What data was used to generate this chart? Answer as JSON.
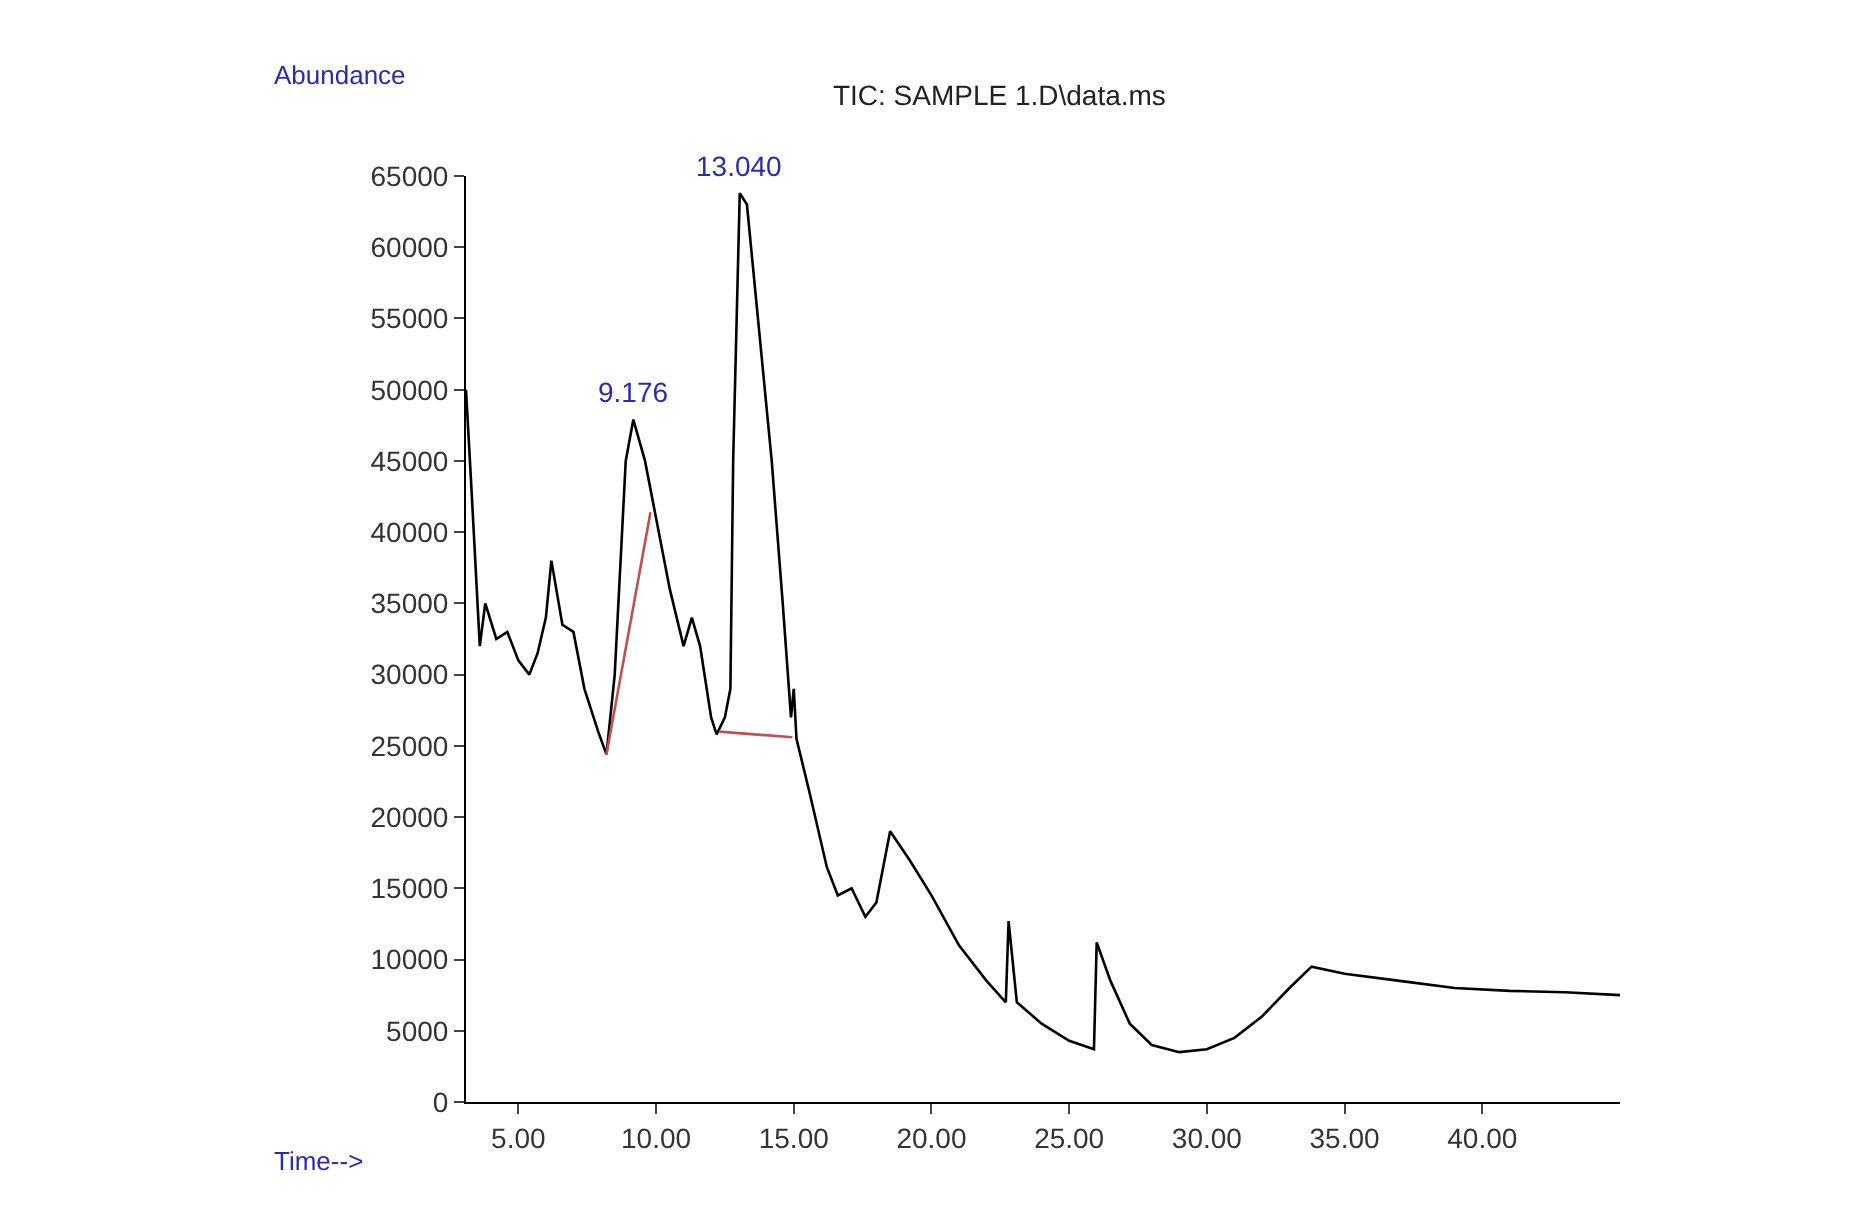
{
  "chart_data": {
    "type": "line",
    "title": "TIC: SAMPLE 1.D\\data.ms",
    "xlabel": "Time-->",
    "ylabel": "Abundance",
    "xlim": [
      3.1,
      45
    ],
    "xticks": [
      {
        "value": 5,
        "label": "5.00"
      },
      {
        "value": 10,
        "label": "10.00"
      },
      {
        "value": 15,
        "label": "15.00"
      },
      {
        "value": 20,
        "label": "20.00"
      },
      {
        "value": 25,
        "label": "25.00"
      },
      {
        "value": 30,
        "label": "30.00"
      },
      {
        "value": 35,
        "label": "35.00"
      },
      {
        "value": 40,
        "label": "40.00"
      }
    ],
    "ylim": [
      0,
      65000
    ],
    "yticks": [
      0,
      5000,
      10000,
      15000,
      20000,
      25000,
      30000,
      35000,
      40000,
      45000,
      50000,
      55000,
      60000,
      65000
    ],
    "marker": "none",
    "line_style": "solid",
    "series": [
      {
        "color": "#000000",
        "x": [
          3.1,
          3.3,
          3.6,
          3.8,
          4.2,
          4.6,
          5.0,
          5.4,
          5.7,
          6.0,
          6.2,
          6.6,
          7.0,
          7.4,
          7.9,
          8.2,
          8.5,
          8.9,
          9.176,
          9.6,
          10.0,
          10.5,
          11.0,
          11.3,
          11.6,
          12.0,
          12.2,
          12.5,
          12.7,
          12.8,
          13.04,
          13.3,
          13.7,
          14.2,
          14.6,
          14.9,
          15.0,
          15.1,
          15.6,
          16.2,
          16.6,
          17.1,
          17.6,
          18.0,
          18.5,
          19.2,
          20.0,
          21.0,
          22.0,
          22.7,
          22.8,
          23.1,
          24.0,
          25.0,
          25.9,
          26.0,
          26.5,
          27.2,
          28.0,
          29.0,
          30.0,
          31.0,
          32.0,
          33.0,
          33.8,
          35.0,
          37.0,
          39.0,
          41.0,
          43.0,
          45.0
        ],
        "values": [
          50000,
          43000,
          32000,
          35000,
          32500,
          33000,
          31000,
          30000,
          31500,
          34000,
          38000,
          33500,
          33000,
          29000,
          26000,
          24400,
          30000,
          45000,
          47900,
          45000,
          41000,
          36000,
          32000,
          34000,
          32000,
          27000,
          25800,
          27000,
          29000,
          45000,
          63800,
          63000,
          55000,
          45000,
          35000,
          27000,
          29000,
          25500,
          21500,
          16500,
          14500,
          15000,
          13000,
          14000,
          19000,
          17000,
          14500,
          11000,
          8500,
          7000,
          12700,
          7000,
          5500,
          4300,
          3700,
          11200,
          8500,
          5500,
          4000,
          3500,
          3700,
          4500,
          6000,
          8000,
          9500,
          9000,
          8500,
          8000,
          7800,
          7700,
          7500
        ]
      },
      {
        "color": "#c0504d",
        "x": [
          8.2,
          9.8
        ],
        "values": [
          24400,
          41400
        ]
      },
      {
        "color": "#c0504d",
        "x": [
          12.3,
          14.95
        ],
        "values": [
          26000,
          25600
        ]
      }
    ],
    "annotations": [
      {
        "text": "9.176",
        "x": 9.176,
        "y": 47900
      },
      {
        "text": "13.040",
        "x": 13.04,
        "y": 63800
      }
    ]
  }
}
